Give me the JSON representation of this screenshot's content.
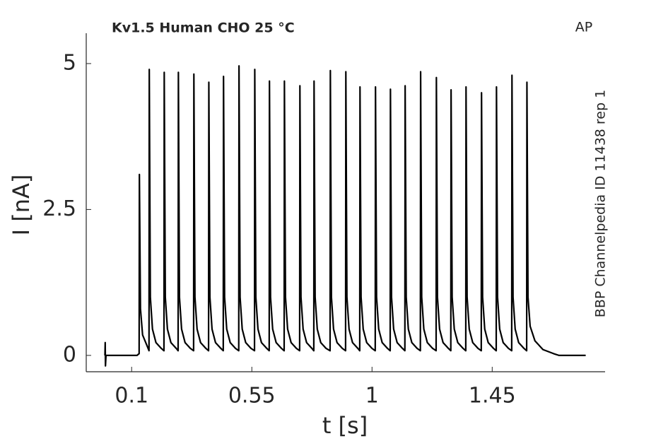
{
  "chart_data": {
    "type": "line",
    "title": "Kv1.5  Human  CHO  25 °C",
    "protocol_label": "AP",
    "side_label": "BBP Channelpedia ID 11438 rep 1",
    "xlabel": "t [s]",
    "ylabel": "I [nA]",
    "xlim": [
      -0.07,
      1.87
    ],
    "ylim": [
      -0.28,
      5.52
    ],
    "xticks": [
      0.1,
      0.55,
      1,
      1.45
    ],
    "yticks": [
      0,
      2.5,
      5
    ],
    "series": [
      {
        "color": "#000000",
        "x": [
          0,
          0.001,
          0.002,
          0.004,
          0.12,
          0.128,
          0.129,
          0.133,
          0.141,
          0.159,
          0.165,
          0.166,
          0.17,
          0.178,
          0.191,
          0.211,
          0.221,
          0.222,
          0.226,
          0.234,
          0.247,
          0.267,
          0.274,
          0.275,
          0.279,
          0.287,
          0.3,
          0.32,
          0.332,
          0.333,
          0.337,
          0.345,
          0.358,
          0.378,
          0.388,
          0.389,
          0.393,
          0.401,
          0.414,
          0.434,
          0.443,
          0.444,
          0.448,
          0.456,
          0.469,
          0.489,
          0.501,
          0.502,
          0.506,
          0.514,
          0.527,
          0.547,
          0.56,
          0.561,
          0.565,
          0.573,
          0.586,
          0.606,
          0.615,
          0.616,
          0.62,
          0.628,
          0.641,
          0.661,
          0.671,
          0.672,
          0.676,
          0.684,
          0.697,
          0.717,
          0.729,
          0.73,
          0.734,
          0.742,
          0.755,
          0.775,
          0.782,
          0.783,
          0.787,
          0.795,
          0.808,
          0.828,
          0.843,
          0.844,
          0.848,
          0.856,
          0.869,
          0.889,
          0.901,
          0.902,
          0.906,
          0.914,
          0.927,
          0.947,
          0.954,
          0.955,
          0.959,
          0.967,
          0.98,
          1.0,
          1.012,
          1.013,
          1.017,
          1.025,
          1.038,
          1.058,
          1.068,
          1.069,
          1.073,
          1.081,
          1.094,
          1.114,
          1.123,
          1.124,
          1.128,
          1.136,
          1.149,
          1.169,
          1.181,
          1.182,
          1.186,
          1.194,
          1.207,
          1.227,
          1.24,
          1.241,
          1.245,
          1.253,
          1.266,
          1.286,
          1.295,
          1.296,
          1.3,
          1.308,
          1.321,
          1.341,
          1.351,
          1.352,
          1.356,
          1.364,
          1.377,
          1.397,
          1.409,
          1.41,
          1.414,
          1.422,
          1.435,
          1.455,
          1.465,
          1.466,
          1.47,
          1.478,
          1.491,
          1.511,
          1.523,
          1.524,
          1.528,
          1.536,
          1.549,
          1.569,
          1.579,
          1.58,
          1.584,
          1.592,
          1.61,
          1.64,
          1.68,
          1.7,
          1.8
        ],
        "values": [
          0,
          0.22,
          -0.18,
          0,
          0,
          0.03,
          3.1,
          0.8,
          0.35,
          0.15,
          0.08,
          4.9,
          1.0,
          0.45,
          0.22,
          0.12,
          0.08,
          4.85,
          1.0,
          0.45,
          0.22,
          0.12,
          0.08,
          4.85,
          1.0,
          0.45,
          0.22,
          0.12,
          0.08,
          4.82,
          1.0,
          0.45,
          0.22,
          0.12,
          0.08,
          4.68,
          1.0,
          0.45,
          0.22,
          0.12,
          0.08,
          4.78,
          1.0,
          0.45,
          0.22,
          0.12,
          0.08,
          4.96,
          1.0,
          0.45,
          0.22,
          0.12,
          0.08,
          4.9,
          1.0,
          0.45,
          0.22,
          0.12,
          0.08,
          4.7,
          1.0,
          0.45,
          0.22,
          0.12,
          0.08,
          4.7,
          1.0,
          0.45,
          0.22,
          0.12,
          0.08,
          4.62,
          1.0,
          0.45,
          0.22,
          0.12,
          0.08,
          4.7,
          1.0,
          0.45,
          0.22,
          0.12,
          0.08,
          4.88,
          1.0,
          0.45,
          0.22,
          0.12,
          0.08,
          4.86,
          1.0,
          0.45,
          0.22,
          0.12,
          0.08,
          4.6,
          1.0,
          0.45,
          0.22,
          0.12,
          0.08,
          4.6,
          1.0,
          0.45,
          0.22,
          0.12,
          0.08,
          4.56,
          1.0,
          0.45,
          0.22,
          0.12,
          0.08,
          4.62,
          1.0,
          0.45,
          0.22,
          0.12,
          0.08,
          4.86,
          1.0,
          0.45,
          0.22,
          0.12,
          0.08,
          4.76,
          1.0,
          0.45,
          0.22,
          0.12,
          0.08,
          4.55,
          1.0,
          0.45,
          0.22,
          0.12,
          0.08,
          4.6,
          1.0,
          0.45,
          0.22,
          0.12,
          0.08,
          4.5,
          1.0,
          0.45,
          0.22,
          0.12,
          0.08,
          4.6,
          1.0,
          0.45,
          0.22,
          0.12,
          0.08,
          4.8,
          1.0,
          0.45,
          0.22,
          0.12,
          0.08,
          4.68,
          1.0,
          0.5,
          0.25,
          0.1,
          0.03,
          0,
          0
        ]
      }
    ]
  }
}
